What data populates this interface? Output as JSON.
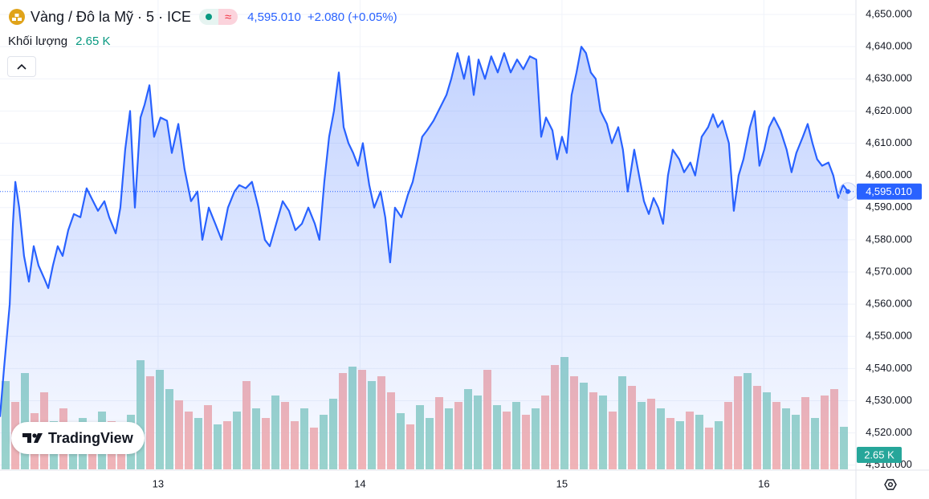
{
  "chart_data": {
    "type": "line",
    "title": "Vàng / Đô la Mỹ · 5 · ICE",
    "badge": "≈",
    "price_label": "4,595.010",
    "change_label": "+2.080 (+0.05%)",
    "logo": "TradingView",
    "color": "#2962ff",
    "grid": true,
    "xlim": [
      12.217,
      16.452
    ],
    "xticks": [
      13,
      14,
      15,
      16
    ],
    "ylim": [
      4508.7,
      4654.5
    ],
    "yticks": [
      {
        "value": 4650,
        "label": "4,650.000"
      },
      {
        "value": 4640,
        "label": "4,640.000"
      },
      {
        "value": 4630,
        "label": "4,630.000"
      },
      {
        "value": 4620,
        "label": "4,620.000"
      },
      {
        "value": 4610,
        "label": "4,610.000"
      },
      {
        "value": 4600,
        "label": "4,600.000"
      },
      {
        "value": 4590,
        "label": "4,590.000"
      },
      {
        "value": 4580,
        "label": "4,580.000"
      },
      {
        "value": 4570,
        "label": "4,570.000"
      },
      {
        "value": 4560,
        "label": "4,560.000"
      },
      {
        "value": 4550,
        "label": "4,550.000"
      },
      {
        "value": 4540,
        "label": "4,540.000"
      },
      {
        "value": 4530,
        "label": "4,530.000"
      },
      {
        "value": 4520,
        "label": "4,520.000"
      },
      {
        "value": 4510,
        "label": "4,510.000"
      }
    ],
    "x": [
      12.217,
      12.237,
      12.265,
      12.281,
      12.293,
      12.312,
      12.336,
      12.36,
      12.384,
      12.408,
      12.436,
      12.456,
      12.479,
      12.503,
      12.527,
      12.555,
      12.583,
      12.615,
      12.646,
      12.67,
      12.702,
      12.734,
      12.758,
      12.79,
      12.813,
      12.837,
      12.861,
      12.885,
      12.913,
      12.933,
      12.957,
      12.98,
      13.012,
      13.044,
      13.068,
      13.1,
      13.131,
      13.163,
      13.195,
      13.219,
      13.251,
      13.283,
      13.314,
      13.346,
      13.378,
      13.402,
      13.434,
      13.465,
      13.497,
      13.529,
      13.553,
      13.585,
      13.617,
      13.648,
      13.68,
      13.712,
      13.744,
      13.776,
      13.799,
      13.823,
      13.847,
      13.871,
      13.895,
      13.919,
      13.943,
      13.966,
      13.99,
      14.014,
      14.046,
      14.07,
      14.102,
      14.125,
      14.149,
      14.173,
      14.205,
      14.237,
      14.261,
      14.285,
      14.308,
      14.332,
      14.364,
      14.396,
      14.428,
      14.452,
      14.483,
      14.515,
      14.539,
      14.563,
      14.587,
      14.619,
      14.65,
      14.682,
      14.714,
      14.746,
      14.778,
      14.809,
      14.841,
      14.873,
      14.897,
      14.921,
      14.953,
      14.976,
      15.0,
      15.024,
      15.048,
      15.072,
      15.096,
      15.119,
      15.143,
      15.167,
      15.191,
      15.223,
      15.247,
      15.279,
      15.302,
      15.326,
      15.358,
      15.382,
      15.406,
      15.43,
      15.454,
      15.477,
      15.501,
      15.525,
      15.549,
      15.581,
      15.605,
      15.636,
      15.66,
      15.692,
      15.724,
      15.748,
      15.772,
      15.795,
      15.827,
      15.851,
      15.875,
      15.899,
      15.931,
      15.954,
      15.978,
      16.002,
      16.026,
      16.05,
      16.082,
      16.113,
      16.137,
      16.161,
      16.193,
      16.217,
      16.241,
      16.264,
      16.288,
      16.32,
      16.344,
      16.368,
      16.392,
      16.416
    ],
    "values": [
      4525,
      4540,
      4560,
      4585,
      4598,
      4590,
      4575,
      4567,
      4578,
      4572,
      4568,
      4565,
      4572,
      4578,
      4575,
      4583,
      4588,
      4587,
      4596,
      4593,
      4589,
      4592,
      4587,
      4582,
      4590,
      4608,
      4620,
      4590,
      4618,
      4622,
      4628,
      4612,
      4618,
      4617,
      4607,
      4616,
      4602,
      4592,
      4595,
      4580,
      4590,
      4585,
      4580,
      4590,
      4595,
      4597,
      4596,
      4598,
      4590,
      4580,
      4578,
      4585,
      4592,
      4589,
      4583,
      4585,
      4590,
      4585,
      4580,
      4598,
      4612,
      4620,
      4632,
      4615,
      4610,
      4607,
      4603,
      4610,
      4597,
      4590,
      4595,
      4587,
      4573,
      4590,
      4587,
      4594,
      4598,
      4605,
      4612,
      4614,
      4617,
      4621,
      4625,
      4630,
      4638,
      4630,
      4637,
      4625,
      4636,
      4630,
      4637,
      4632,
      4638,
      4632,
      4636,
      4633,
      4637,
      4636,
      4612,
      4618,
      4614,
      4605,
      4612,
      4607,
      4625,
      4632,
      4640,
      4638,
      4632,
      4630,
      4620,
      4616,
      4610,
      4615,
      4608,
      4595,
      4608,
      4600,
      4592,
      4588,
      4593,
      4590,
      4585,
      4600,
      4608,
      4605,
      4601,
      4604,
      4600,
      4612,
      4615,
      4619,
      4615,
      4617,
      4610,
      4589,
      4600,
      4605,
      4615,
      4620,
      4603,
      4608,
      4615,
      4618,
      4614,
      4608,
      4601,
      4607,
      4612,
      4616,
      4610,
      4605,
      4603,
      4604,
      4600,
      4593,
      4597,
      4595.01
    ],
    "volume": {
      "name": "Khối lượng",
      "value_label": "2.65 K",
      "vlim": [
        0,
        7500
      ],
      "values": [
        5500,
        4200,
        6000,
        3500,
        4800,
        3000,
        3800,
        2600,
        3200,
        2800,
        3600,
        3000,
        2500,
        3400,
        6800,
        5800,
        6200,
        5000,
        4300,
        3600,
        3200,
        4000,
        2800,
        3000,
        3600,
        5500,
        3800,
        3200,
        4600,
        4200,
        3000,
        3800,
        2600,
        3400,
        4400,
        6000,
        6400,
        6200,
        5500,
        5800,
        4800,
        3500,
        2800,
        4000,
        3200,
        4500,
        3800,
        4200,
        5000,
        4600,
        6200,
        4000,
        3600,
        4200,
        3400,
        3800,
        4600,
        6500,
        7000,
        5800,
        5400,
        4800,
        4600,
        3600,
        5800,
        5200,
        4200,
        4400,
        3800,
        3200,
        3000,
        3600,
        3400,
        2600,
        3000,
        4200,
        5800,
        6000,
        5200,
        4800,
        4200,
        3800,
        3400,
        4500,
        3200,
        4600,
        5000,
        2650
      ],
      "colors": [
        "#8ccfc2",
        "#f4a9a8",
        "#8ccfc2",
        "#f4a9a8",
        "#f4a9a8",
        "#8ccfc2",
        "#f4a9a8",
        "#8ccfc2",
        "#8ccfc2",
        "#f4a9a8",
        "#8ccfc2",
        "#f4a9a8",
        "#f4a9a8",
        "#8ccfc2",
        "#8ccfc2",
        "#f4a9a8",
        "#8ccfc2",
        "#8ccfc2",
        "#f4a9a8",
        "#f4a9a8",
        "#8ccfc2",
        "#f4a9a8",
        "#8ccfc2",
        "#f4a9a8",
        "#8ccfc2",
        "#f4a9a8",
        "#8ccfc2",
        "#f4a9a8",
        "#8ccfc2",
        "#f4a9a8",
        "#f4a9a8",
        "#8ccfc2",
        "#f4a9a8",
        "#8ccfc2",
        "#8ccfc2",
        "#f4a9a8",
        "#8ccfc2",
        "#f4a9a8",
        "#8ccfc2",
        "#f4a9a8",
        "#f4a9a8",
        "#8ccfc2",
        "#f4a9a8",
        "#8ccfc2",
        "#8ccfc2",
        "#f4a9a8",
        "#8ccfc2",
        "#f4a9a8",
        "#8ccfc2",
        "#8ccfc2",
        "#f4a9a8",
        "#8ccfc2",
        "#f4a9a8",
        "#8ccfc2",
        "#f4a9a8",
        "#8ccfc2",
        "#f4a9a8",
        "#f4a9a8",
        "#8ccfc2",
        "#f4a9a8",
        "#8ccfc2",
        "#f4a9a8",
        "#8ccfc2",
        "#f4a9a8",
        "#8ccfc2",
        "#f4a9a8",
        "#8ccfc2",
        "#f4a9a8",
        "#8ccfc2",
        "#f4a9a8",
        "#8ccfc2",
        "#f4a9a8",
        "#8ccfc2",
        "#f4a9a8",
        "#8ccfc2",
        "#f4a9a8",
        "#f4a9a8",
        "#8ccfc2",
        "#f4a9a8",
        "#8ccfc2",
        "#f4a9a8",
        "#8ccfc2",
        "#8ccfc2",
        "#f4a9a8",
        "#8ccfc2",
        "#f4a9a8",
        "#f4a9a8",
        "#8ccfc2"
      ]
    }
  }
}
